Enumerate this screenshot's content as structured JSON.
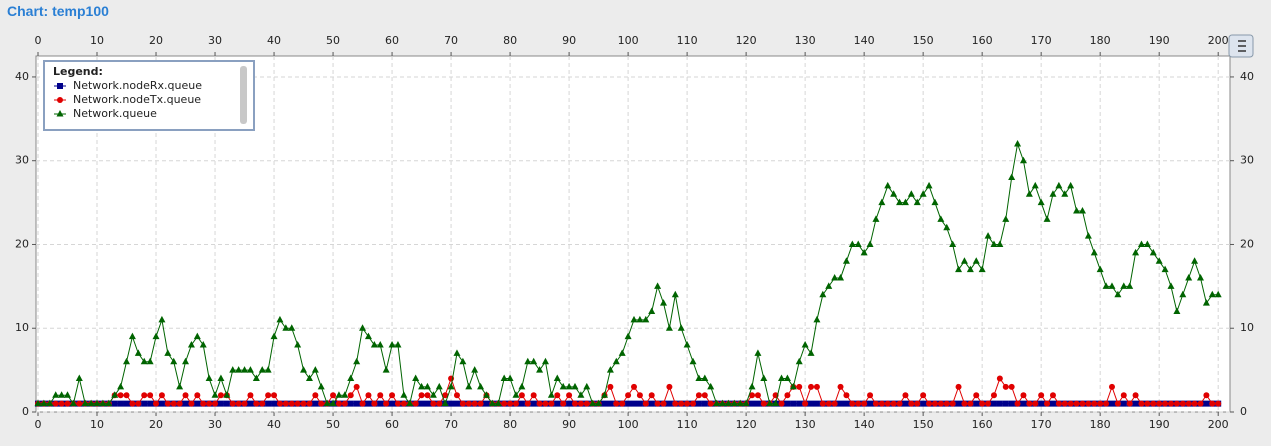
{
  "chart_data": {
    "type": "line",
    "title": "Chart: temp100",
    "legend_title": "Legend:",
    "x": [
      0,
      1,
      2,
      3,
      4,
      5,
      6,
      7,
      8,
      9,
      10,
      11,
      12,
      13,
      14,
      15,
      16,
      17,
      18,
      19,
      20,
      21,
      22,
      23,
      24,
      25,
      26,
      27,
      28,
      29,
      30,
      31,
      32,
      33,
      34,
      35,
      36,
      37,
      38,
      39,
      40,
      41,
      42,
      43,
      44,
      45,
      46,
      47,
      48,
      49,
      50,
      51,
      52,
      53,
      54,
      55,
      56,
      57,
      58,
      59,
      60,
      61,
      62,
      63,
      64,
      65,
      66,
      67,
      68,
      69,
      70,
      71,
      72,
      73,
      74,
      75,
      76,
      77,
      78,
      79,
      80,
      81,
      82,
      83,
      84,
      85,
      86,
      87,
      88,
      89,
      90,
      91,
      92,
      93,
      94,
      95,
      96,
      97,
      98,
      99,
      100,
      101,
      102,
      103,
      104,
      105,
      106,
      107,
      108,
      109,
      110,
      111,
      112,
      113,
      114,
      115,
      116,
      117,
      118,
      119,
      120,
      121,
      122,
      123,
      124,
      125,
      126,
      127,
      128,
      129,
      130,
      131,
      132,
      133,
      134,
      135,
      136,
      137,
      138,
      139,
      140,
      141,
      142,
      143,
      144,
      145,
      146,
      147,
      148,
      149,
      150,
      151,
      152,
      153,
      154,
      155,
      156,
      157,
      158,
      159,
      160,
      161,
      162,
      163,
      164,
      165,
      166,
      167,
      168,
      169,
      170,
      171,
      172,
      173,
      174,
      175,
      176,
      177,
      178,
      179,
      180,
      181,
      182,
      183,
      184,
      185,
      186,
      187,
      188,
      189,
      190,
      191,
      192,
      193,
      194,
      195,
      196,
      197,
      198,
      199,
      200
    ],
    "series": [
      {
        "name": "Network.nodeRx.queue",
        "color": "#00008b",
        "marker": "square",
        "values": [
          1,
          1,
          1,
          1,
          1,
          1,
          1,
          1,
          1,
          1,
          1,
          1,
          1,
          1,
          1,
          1,
          1,
          1,
          1,
          1,
          1,
          1,
          1,
          1,
          1,
          1,
          1,
          1,
          1,
          1,
          1,
          1,
          1,
          1,
          1,
          1,
          1,
          1,
          1,
          1,
          1,
          1,
          1,
          1,
          1,
          1,
          1,
          1,
          1,
          1,
          1,
          1,
          1,
          1,
          1,
          1,
          1,
          1,
          1,
          1,
          1,
          1,
          1,
          1,
          1,
          1,
          1,
          1,
          1,
          1,
          1,
          1,
          1,
          1,
          1,
          1,
          1,
          1,
          1,
          1,
          1,
          1,
          1,
          1,
          1,
          1,
          1,
          1,
          1,
          1,
          1,
          1,
          1,
          1,
          1,
          1,
          1,
          1,
          1,
          1,
          1,
          1,
          1,
          1,
          1,
          1,
          1,
          1,
          1,
          1,
          1,
          1,
          1,
          1,
          1,
          1,
          1,
          1,
          1,
          1,
          1,
          1,
          1,
          1,
          1,
          1,
          1,
          1,
          1,
          1,
          1,
          1,
          1,
          1,
          1,
          1,
          1,
          1,
          1,
          1,
          1,
          1,
          1,
          1,
          1,
          1,
          1,
          1,
          1,
          1,
          1,
          1,
          1,
          1,
          1,
          1,
          1,
          1,
          1,
          1,
          1,
          1,
          1,
          1,
          1,
          1,
          1,
          1,
          1,
          1,
          1,
          1,
          1,
          1,
          1,
          1,
          1,
          1,
          1,
          1,
          1,
          1,
          1,
          1,
          1,
          1,
          1,
          1,
          1,
          1,
          1,
          1,
          1,
          1,
          1,
          1,
          1,
          1,
          1,
          1,
          1
        ]
      },
      {
        "name": "Network.nodeTx.queue",
        "color": "#e00000",
        "marker": "circle",
        "values": [
          1,
          1,
          1,
          1,
          1,
          1,
          1,
          1,
          1,
          1,
          1,
          1,
          1,
          2,
          2,
          2,
          1,
          1,
          2,
          2,
          1,
          2,
          1,
          1,
          1,
          2,
          1,
          2,
          1,
          1,
          1,
          2,
          2,
          1,
          1,
          1,
          2,
          1,
          1,
          2,
          2,
          1,
          1,
          1,
          1,
          1,
          1,
          2,
          1,
          1,
          2,
          1,
          1,
          2,
          3,
          1,
          2,
          1,
          2,
          1,
          2,
          1,
          1,
          1,
          1,
          2,
          2,
          1,
          1,
          2,
          4,
          2,
          1,
          1,
          1,
          1,
          2,
          1,
          1,
          1,
          1,
          1,
          2,
          1,
          2,
          1,
          1,
          1,
          2,
          1,
          2,
          1,
          1,
          1,
          1,
          1,
          2,
          3,
          1,
          1,
          2,
          3,
          2,
          1,
          2,
          1,
          1,
          3,
          1,
          1,
          1,
          1,
          2,
          2,
          1,
          1,
          1,
          1,
          1,
          1,
          1,
          2,
          2,
          1,
          1,
          2,
          1,
          2,
          3,
          3,
          1,
          3,
          3,
          1,
          1,
          1,
          3,
          2,
          1,
          1,
          1,
          2,
          1,
          1,
          1,
          1,
          1,
          2,
          1,
          1,
          2,
          1,
          1,
          1,
          1,
          1,
          3,
          1,
          1,
          2,
          1,
          1,
          2,
          4,
          3,
          3,
          1,
          2,
          1,
          1,
          2,
          1,
          2,
          1,
          1,
          1,
          1,
          1,
          1,
          1,
          1,
          1,
          3,
          1,
          2,
          1,
          2,
          1,
          1,
          1,
          1,
          1,
          1,
          1,
          1,
          1,
          1,
          1,
          2,
          1,
          1
        ]
      },
      {
        "name": "Network.queue",
        "color": "#006400",
        "marker": "triangle",
        "values": [
          1,
          1,
          1,
          2,
          2,
          2,
          1,
          4,
          1,
          1,
          1,
          1,
          1,
          2,
          3,
          6,
          9,
          7,
          6,
          6,
          9,
          11,
          7,
          6,
          3,
          6,
          8,
          9,
          8,
          4,
          2,
          4,
          2,
          5,
          5,
          5,
          5,
          4,
          5,
          5,
          9,
          11,
          10,
          10,
          8,
          5,
          4,
          5,
          3,
          1,
          1,
          2,
          2,
          4,
          6,
          10,
          9,
          8,
          8,
          5,
          8,
          8,
          2,
          1,
          4,
          3,
          3,
          2,
          3,
          1,
          3,
          7,
          6,
          3,
          5,
          3,
          2,
          1,
          1,
          4,
          4,
          2,
          3,
          6,
          6,
          5,
          6,
          2,
          4,
          3,
          3,
          3,
          2,
          3,
          1,
          1,
          2,
          5,
          6,
          7,
          9,
          11,
          11,
          11,
          12,
          15,
          13,
          10,
          14,
          10,
          8,
          6,
          4,
          4,
          3,
          1,
          1,
          1,
          1,
          1,
          1,
          3,
          7,
          4,
          1,
          1,
          4,
          4,
          3,
          6,
          8,
          7,
          11,
          14,
          15,
          16,
          16,
          18,
          20,
          20,
          19,
          20,
          23,
          25,
          27,
          26,
          25,
          25,
          26,
          25,
          26,
          27,
          25,
          23,
          22,
          20,
          17,
          18,
          17,
          18,
          17,
          21,
          20,
          20,
          23,
          28,
          32,
          30,
          26,
          27,
          25,
          23,
          26,
          27,
          26,
          27,
          24,
          24,
          21,
          19,
          17,
          15,
          15,
          14,
          15,
          15,
          19,
          20,
          20,
          19,
          18,
          17,
          15,
          12,
          14,
          16,
          18,
          16,
          13,
          14,
          14
        ]
      }
    ],
    "xlim": [
      0,
      202
    ],
    "xticks": [
      0,
      10,
      20,
      30,
      40,
      50,
      60,
      70,
      80,
      90,
      100,
      110,
      120,
      130,
      140,
      150,
      160,
      170,
      180,
      190,
      200
    ],
    "ylim": [
      0,
      42.5
    ],
    "yticks": [
      0,
      10,
      20,
      30,
      40
    ],
    "grid": true,
    "legend": "upper left"
  }
}
